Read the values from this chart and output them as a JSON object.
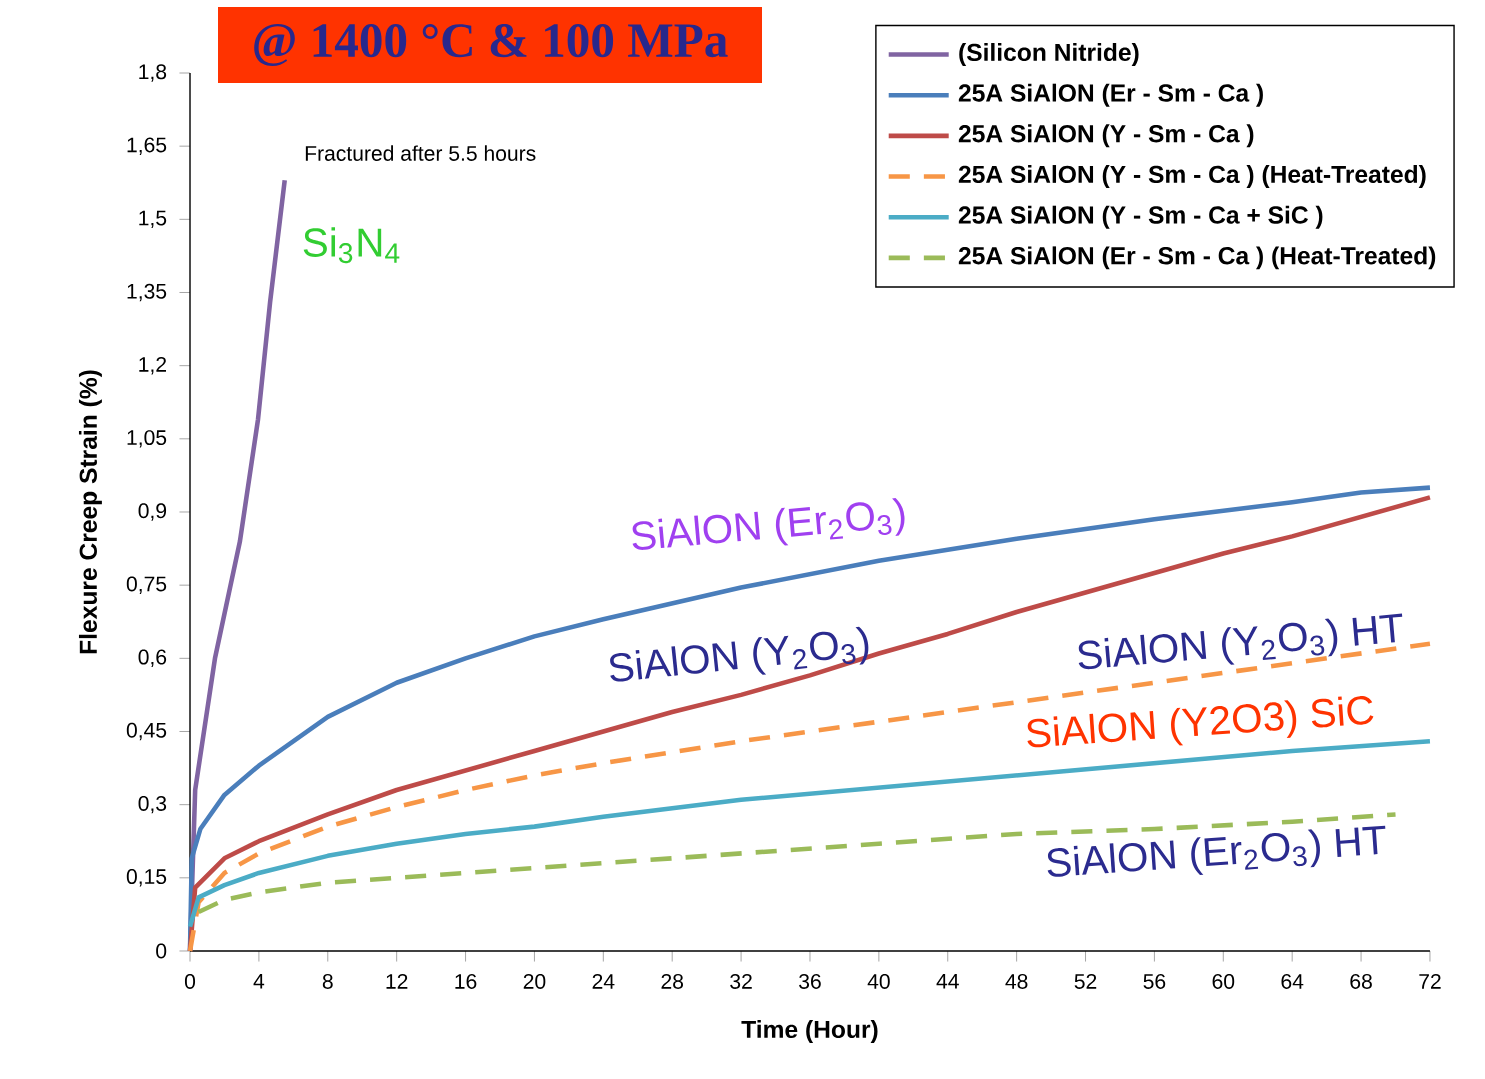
{
  "chart_data": {
    "type": "line",
    "title": "@ 1400 °C & 100 MPa",
    "xlabel": "Time (Hour)",
    "ylabel": "Flexure Creep Strain (%)",
    "xlim": [
      0,
      72
    ],
    "xticks": [
      0,
      4,
      8,
      12,
      16,
      20,
      24,
      28,
      32,
      36,
      40,
      44,
      48,
      52,
      56,
      60,
      64,
      68,
      72
    ],
    "ylim": [
      0,
      1.8
    ],
    "yticks": [
      0,
      {
        "value": 0.15,
        "label": "0,15"
      },
      {
        "value": 0.3,
        "label": "0,3"
      },
      {
        "value": 0.45,
        "label": "0,45"
      },
      {
        "value": 0.6,
        "label": "0,6"
      },
      {
        "value": 0.75,
        "label": "0,75"
      },
      {
        "value": 0.9,
        "label": "0,9"
      },
      {
        "value": 1.05,
        "label": "1,05"
      },
      {
        "value": 1.2,
        "label": "1,2"
      },
      {
        "value": 1.35,
        "label": "1,35"
      },
      {
        "value": 1.5,
        "label": "1,5"
      },
      {
        "value": 1.65,
        "label": "1,65"
      },
      {
        "value": 1.8,
        "label": "1,8"
      }
    ],
    "grid": false,
    "legend": "top right",
    "marker": "none",
    "annotations": [
      {
        "text": "Fractured after 5.5 hours",
        "x": 5.5,
        "y": 1.58
      },
      "Si$_{3}$N$_{4}$",
      "SiAlON (Er$_{2}$O$_{3}$)",
      "SiAlON (Y$_{2}$O$_{3}$)",
      "SiAlON (Y$_{2}$O$_{3}$) HT",
      "SiAlON (Y2O3) SiC",
      "SiAlON (Er$_{2}$O$_{3}$) HT"
    ],
    "series": [
      {
        "name": "(Silicon Nitride)",
        "color": "#8064a2",
        "line_style": "solid",
        "x": [
          0,
          0.3,
          1.45,
          2.9,
          3.95,
          4.65,
          5.5
        ],
        "values": [
          0,
          0.33,
          0.6,
          0.84,
          1.09,
          1.33,
          1.58
        ]
      },
      {
        "name": "25A SiAlON (Er - Sm - Ca )",
        "color": "#4a7ebb",
        "line_style": "solid",
        "x": [
          0,
          0.1,
          0.6,
          2,
          4,
          8,
          12,
          16,
          20,
          24,
          32,
          40,
          48,
          56,
          64,
          68,
          72
        ],
        "values": [
          0,
          0.19,
          0.25,
          0.32,
          0.38,
          0.48,
          0.55,
          0.6,
          0.645,
          0.68,
          0.745,
          0.8,
          0.845,
          0.885,
          0.92,
          0.94,
          0.95
        ]
      },
      {
        "name": "25A SiAlON (Y - Sm - Ca )",
        "color": "#be4b48",
        "line_style": "solid",
        "x": [
          0,
          0.3,
          2,
          4,
          8,
          12,
          16,
          20,
          24,
          28,
          32,
          36,
          40,
          44,
          48,
          52,
          56,
          60,
          64,
          68,
          72
        ],
        "values": [
          0,
          0.13,
          0.19,
          0.225,
          0.28,
          0.33,
          0.37,
          0.41,
          0.45,
          0.49,
          0.525,
          0.565,
          0.61,
          0.65,
          0.695,
          0.735,
          0.775,
          0.815,
          0.85,
          0.89,
          0.93
        ]
      },
      {
        "name": "25A SiAlON (Y - Sm - Ca ) (Heat-Treated)",
        "color": "#f79646",
        "line_style": "dashed",
        "x": [
          0,
          0.5,
          2,
          4,
          8,
          12,
          16,
          20,
          24,
          32,
          40,
          48,
          56,
          64,
          72
        ],
        "values": [
          0,
          0.1,
          0.16,
          0.2,
          0.255,
          0.295,
          0.33,
          0.36,
          0.385,
          0.43,
          0.47,
          0.51,
          0.55,
          0.59,
          0.63
        ]
      },
      {
        "name": "25A SiAlON (Y - Sm - Ca  + SiC )",
        "color": "#4bacc6",
        "line_style": "solid",
        "x": [
          0,
          0.5,
          2,
          4,
          8,
          12,
          16,
          20,
          24,
          32,
          40,
          48,
          56,
          64,
          72
        ],
        "values": [
          0.05,
          0.11,
          0.135,
          0.16,
          0.195,
          0.22,
          0.24,
          0.255,
          0.275,
          0.31,
          0.335,
          0.36,
          0.385,
          0.41,
          0.43
        ]
      },
      {
        "name": "25A SiAlON (Er - Sm - Ca ) (Heat-Treated)",
        "color": "#9bbb59",
        "line_style": "dashed",
        "x": [
          0.5,
          2,
          4,
          8,
          16,
          24,
          32,
          40,
          48,
          56,
          64,
          70
        ],
        "values": [
          0.08,
          0.105,
          0.12,
          0.14,
          0.16,
          0.18,
          0.2,
          0.22,
          0.24,
          0.25,
          0.265,
          0.28
        ]
      }
    ]
  }
}
